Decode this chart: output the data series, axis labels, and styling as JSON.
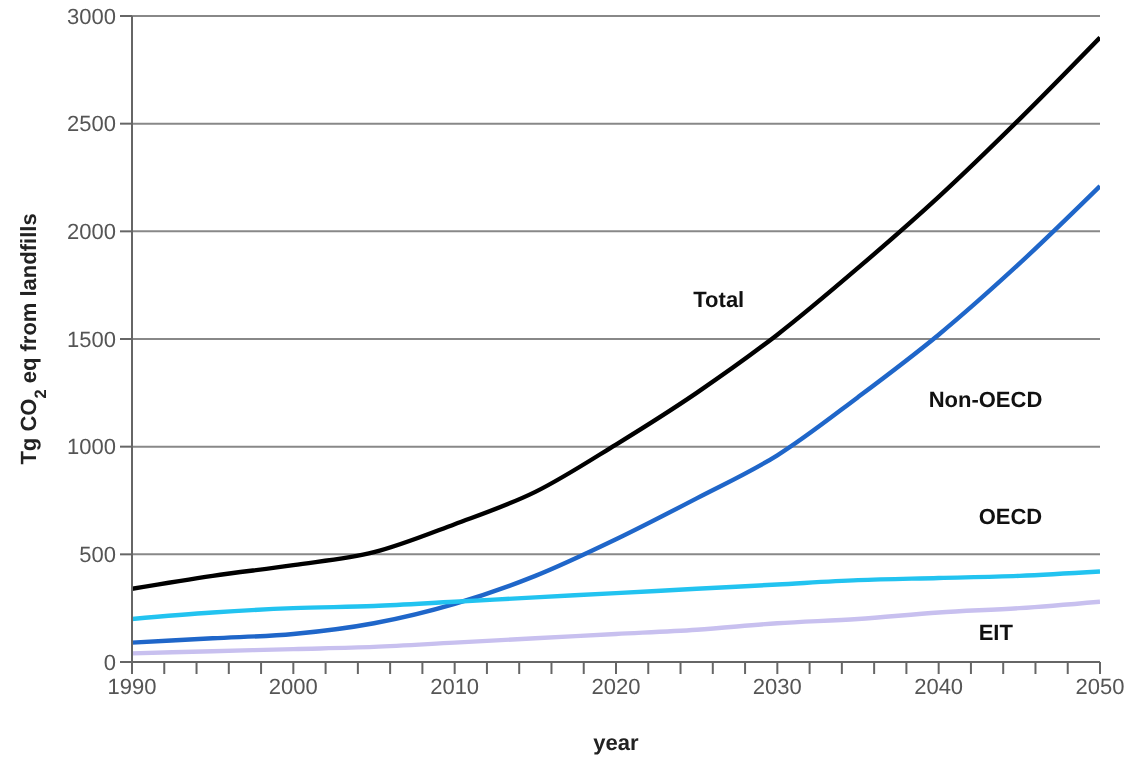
{
  "chart_data": {
    "type": "line",
    "xlabel": "year",
    "ylabel": "Tg CO$_{2}$ eq from landfills",
    "x": [
      1990,
      1995,
      2000,
      2005,
      2010,
      2015,
      2020,
      2025,
      2030,
      2035,
      2040,
      2045,
      2050
    ],
    "series": [
      {
        "name": "Total",
        "color": "#000000",
        "values": [
          340,
          400,
          450,
          510,
          640,
          790,
          1010,
          1250,
          1520,
          1830,
          2160,
          2520,
          2900
        ]
      },
      {
        "name": "Non-OECD",
        "color": "#1f66c9",
        "values": [
          90,
          110,
          130,
          180,
          270,
          400,
          570,
          760,
          960,
          1230,
          1520,
          1850,
          2210
        ]
      },
      {
        "name": "OECD",
        "color": "#22c3f0",
        "values": [
          200,
          230,
          250,
          260,
          280,
          300,
          320,
          340,
          360,
          380,
          390,
          400,
          420
        ]
      },
      {
        "name": "EIT",
        "color": "#c8c0ef",
        "values": [
          40,
          50,
          60,
          70,
          90,
          110,
          130,
          150,
          180,
          200,
          230,
          250,
          280
        ]
      }
    ],
    "xlim": [
      1990,
      2050
    ],
    "xticks": [
      1990,
      {
        "value": 1992,
        "label": null
      },
      {
        "value": 1994,
        "label": null
      },
      {
        "value": 1996,
        "label": null
      },
      {
        "value": 1998,
        "label": null
      },
      2000,
      {
        "value": 2002,
        "label": null
      },
      {
        "value": 2004,
        "label": null
      },
      {
        "value": 2006,
        "label": null
      },
      {
        "value": 2008,
        "label": null
      },
      2010,
      {
        "value": 2012,
        "label": null
      },
      {
        "value": 2014,
        "label": null
      },
      {
        "value": 2016,
        "label": null
      },
      {
        "value": 2018,
        "label": null
      },
      2020,
      {
        "value": 2022,
        "label": null
      },
      {
        "value": 2024,
        "label": null
      },
      {
        "value": 2026,
        "label": null
      },
      {
        "value": 2028,
        "label": null
      },
      2030,
      {
        "value": 2032,
        "label": null
      },
      {
        "value": 2034,
        "label": null
      },
      {
        "value": 2036,
        "label": null
      },
      {
        "value": 2038,
        "label": null
      },
      2040,
      {
        "value": 2042,
        "label": null
      },
      {
        "value": 2044,
        "label": null
      },
      {
        "value": 2046,
        "label": null
      },
      {
        "value": 2048,
        "label": null
      },
      2050
    ],
    "ylim": [
      0,
      3000
    ],
    "yticks": [
      0,
      500,
      1000,
      1500,
      2000,
      2500,
      3000
    ],
    "grid": "y",
    "legend": false,
    "marker": "none",
    "line_style": "solid"
  }
}
